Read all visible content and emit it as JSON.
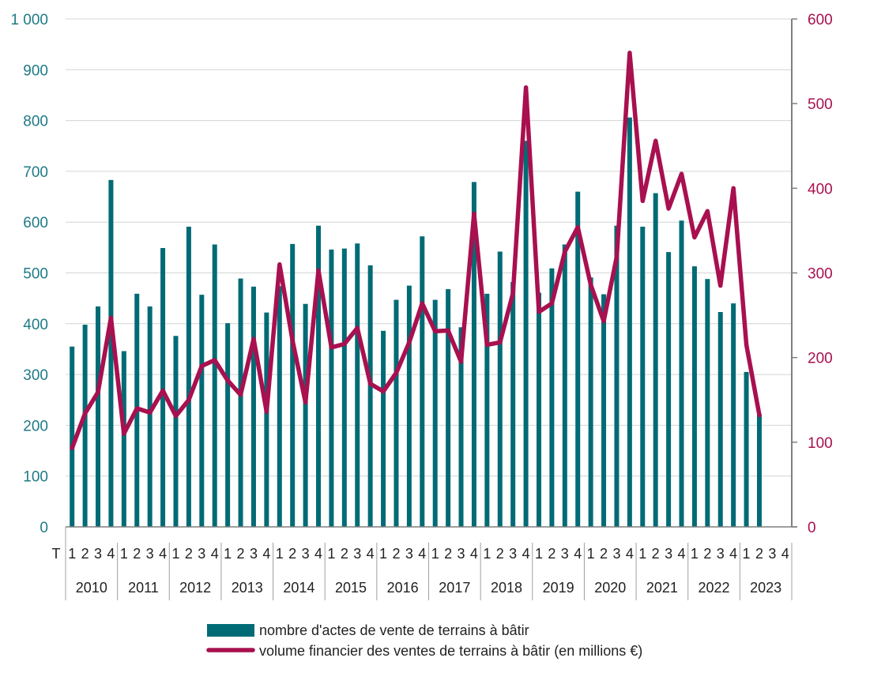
{
  "chart_data": {
    "type": "bar",
    "title": "",
    "quarter_prefix": "T",
    "quarter_labels": [
      "1",
      "2",
      "3",
      "4"
    ],
    "years": [
      "2010",
      "2011",
      "2012",
      "2013",
      "2014",
      "2015",
      "2016",
      "2017",
      "2018",
      "2019",
      "2020",
      "2021",
      "2022",
      "2023"
    ],
    "series": [
      {
        "name": "nombre d'actes de vente de terrains à bâtir",
        "kind": "bar",
        "axis": "left",
        "color": "#006b75",
        "values": [
          355,
          398,
          434,
          683,
          346,
          459,
          434,
          549,
          376,
          591,
          457,
          556,
          401,
          489,
          473,
          422,
          474,
          557,
          439,
          593,
          546,
          548,
          558,
          515,
          386,
          447,
          475,
          572,
          447,
          468,
          393,
          679,
          459,
          542,
          482,
          760,
          461,
          509,
          556,
          660,
          491,
          458,
          593,
          806,
          591,
          657,
          541,
          603,
          513,
          488,
          423,
          440,
          305,
          222,
          null,
          null
        ]
      },
      {
        "name": "volume financier des ventes de terrains à bâtir  (en millions €)",
        "kind": "line",
        "axis": "right",
        "color": "#a8104f",
        "values": [
          93,
          134,
          159,
          247,
          110,
          140,
          135,
          161,
          131,
          150,
          190,
          197,
          173,
          156,
          222,
          136,
          310,
          220,
          147,
          303,
          212,
          216,
          235,
          169,
          160,
          182,
          218,
          264,
          231,
          232,
          195,
          370,
          215,
          218,
          276,
          519,
          254,
          264,
          325,
          354,
          286,
          243,
          319,
          560,
          385,
          456,
          376,
          417,
          342,
          373,
          285,
          400,
          215,
          132,
          null,
          null
        ]
      }
    ],
    "y_left": {
      "min": 0,
      "max": 1000,
      "step": 100,
      "tick_labels": [
        "0",
        "100",
        "200",
        "300",
        "400",
        "500",
        "600",
        "700",
        "800",
        "900",
        "1 000"
      ]
    },
    "y_right": {
      "min": 0,
      "max": 600,
      "step": 100,
      "tick_labels": [
        "0",
        "100",
        "200",
        "300",
        "400",
        "500",
        "600"
      ]
    },
    "grid": true,
    "legend_position": "bottom-center"
  }
}
